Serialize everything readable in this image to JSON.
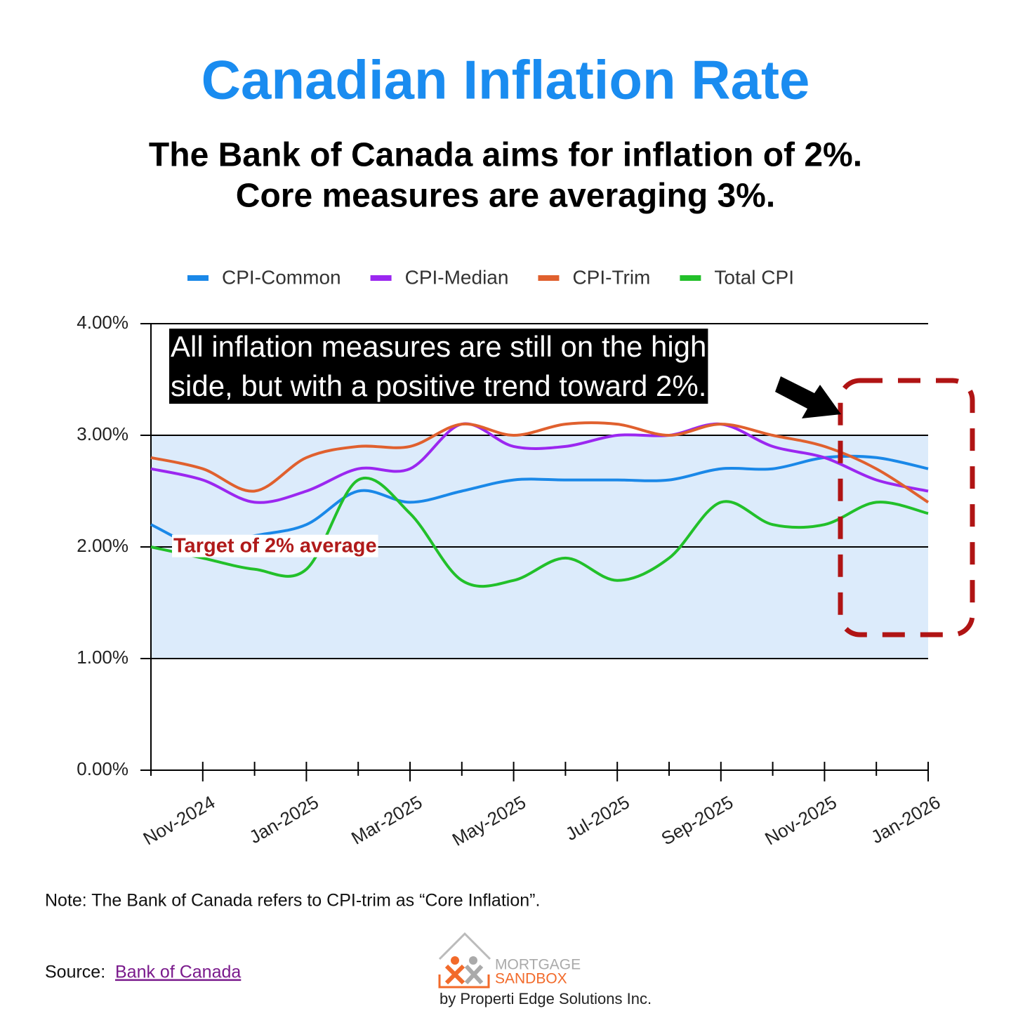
{
  "chart_data": {
    "type": "line",
    "title": "Canadian Inflation Rate",
    "subtitle": [
      "The Bank of Canada aims for inflation of 2%.",
      "Core measures are averaging 3%."
    ],
    "categories": [
      null,
      "Nov-2024",
      null,
      "Jan-2025",
      null,
      "Mar-2025",
      null,
      "May-2025",
      null,
      "Jul-2025",
      null,
      "Sep-2025",
      null,
      "Nov-2025",
      null,
      "Jan-2026"
    ],
    "series": [
      {
        "name": "CPI-Common",
        "color": "#1a88e8",
        "values": [
          2.2,
          2.0,
          2.1,
          2.2,
          2.5,
          2.4,
          2.5,
          2.6,
          2.6,
          2.6,
          2.6,
          2.7,
          2.7,
          2.8,
          2.8,
          2.7
        ]
      },
      {
        "name": "CPI-Median",
        "color": "#9b27f0",
        "values": [
          2.7,
          2.6,
          2.4,
          2.5,
          2.7,
          2.7,
          3.1,
          2.9,
          2.9,
          3.0,
          3.0,
          3.1,
          2.9,
          2.8,
          2.6,
          2.5
        ]
      },
      {
        "name": "CPI-Trim",
        "color": "#e0602e",
        "values": [
          2.8,
          2.7,
          2.5,
          2.8,
          2.9,
          2.9,
          3.1,
          3.0,
          3.1,
          3.1,
          3.0,
          3.1,
          3.0,
          2.9,
          2.7,
          2.4
        ]
      },
      {
        "name": "Total CPI",
        "color": "#22c02a",
        "values": [
          2.0,
          1.9,
          1.8,
          1.8,
          2.6,
          2.3,
          1.7,
          1.7,
          1.9,
          1.7,
          1.9,
          2.4,
          2.2,
          2.2,
          2.4,
          2.3
        ]
      }
    ],
    "ylim": [
      0,
      4
    ],
    "yticks": [
      {
        "value": 0,
        "label": "0.00%"
      },
      {
        "value": 1,
        "label": "1.00%"
      },
      {
        "value": 2,
        "label": "2.00%"
      },
      {
        "value": 3,
        "label": "3.00%"
      },
      {
        "value": 4,
        "label": "4.00%"
      }
    ],
    "grid": true,
    "shaded_range": [
      1,
      3
    ],
    "shaded_color": "#dcebfb",
    "target_label": "Target of 2% average",
    "callout": [
      "All inflation measures are still on the high",
      "side, but with a positive trend toward 2%."
    ]
  },
  "note": "Note: The Bank of Canada refers to CPI-trim as “Core Inflation”.",
  "source": {
    "label": "Source:",
    "link": "Bank of Canada"
  },
  "logo": {
    "line1": "MORTGAGE",
    "line2": "SANDBOX",
    "byline": "by Properti Edge Solutions Inc."
  }
}
